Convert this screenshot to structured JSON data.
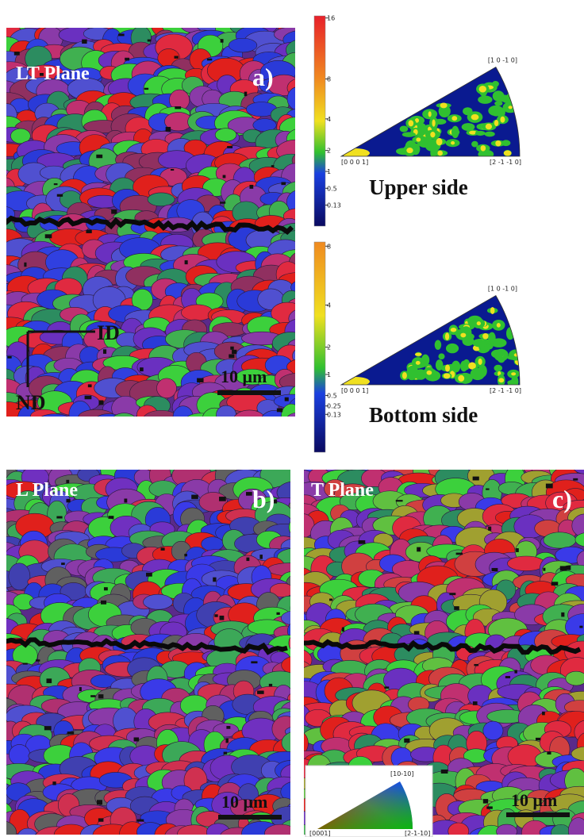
{
  "panel_a": {
    "title": "LT Plane",
    "label": "a)",
    "axis_x": "ID",
    "axis_y": "ND",
    "scale": "10 μm"
  },
  "pole_figures": [
    {
      "colorbar_ticks": [
        "16",
        "8",
        "4",
        "2",
        "1",
        "0.5",
        "0.13"
      ],
      "corners": {
        "top": "[1 0 -1 0]",
        "left": "[0 0 0 1]",
        "right": "[2 -1 -1 0]"
      },
      "caption": "Upper side"
    },
    {
      "colorbar_ticks": [
        "8",
        "4",
        "2",
        "1",
        "0.5",
        "0.25",
        "0.13"
      ],
      "corners": {
        "top": "[1 0 -1 0]",
        "left": "[0 0 0 1]",
        "right": "[2 -1 -1 0]"
      },
      "caption": "Bottom side"
    }
  ],
  "panel_b": {
    "title": "L Plane",
    "label": "b)",
    "scale": "10 μm"
  },
  "panel_c": {
    "title": "T Plane",
    "label": "c)",
    "scale": "10 μm"
  },
  "legend": {
    "top": "[10-10]",
    "left": "[0001]",
    "right": "[2-1-10]"
  }
}
